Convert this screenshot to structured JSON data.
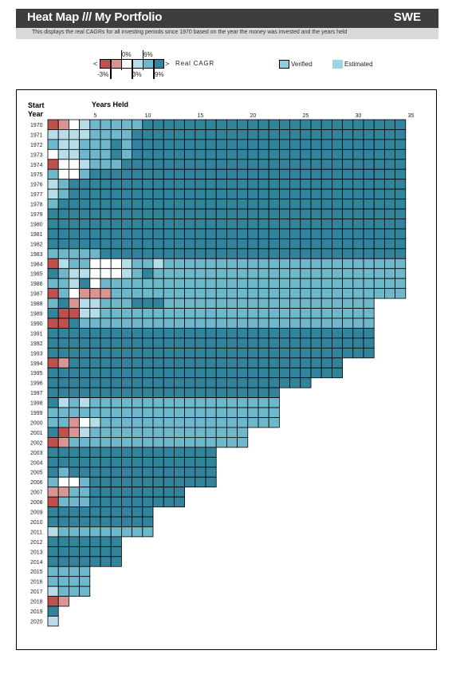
{
  "header": {
    "title": "Heat Map /// My Portfolio",
    "region": "SWE"
  },
  "subtitle": "This displays the real CAGRs for all investing periods since 1970 based on the year the money was invested and the years held",
  "legend": {
    "less_symbol": "<",
    "greater_symbol": ">",
    "metric_label": "Real CAGR",
    "thresholds_top": [
      "0%",
      "6%"
    ],
    "thresholds_bottom": [
      "-3%",
      "3%",
      "9%"
    ],
    "verified_label": "Verified",
    "estimated_label": "Estimated"
  },
  "colors": {
    "lt_neg3": "#c0504d",
    "neg3_0": "#d99594",
    "p0_3": "#ffffff",
    "p3_6": "#b7dde8",
    "p6_9": "#6fb8cb",
    "gt9": "#31849b",
    "verified": "#92cddc",
    "estimated": "#9fd3e6"
  },
  "chart_data": {
    "type": "heatmap",
    "row_header": [
      "Start",
      "Year"
    ],
    "col_header": "Years Held",
    "col_ticks": [
      5,
      10,
      15,
      20,
      25,
      30,
      35
    ],
    "start_years": [
      1970,
      1971,
      1972,
      1973,
      1974,
      1975,
      1976,
      1977,
      1978,
      1979,
      1980,
      1981,
      1982,
      1983,
      1984,
      1985,
      1986,
      1987,
      1988,
      1989,
      1990,
      1991,
      1992,
      1993,
      1994,
      1995,
      1996,
      1997,
      1998,
      1999,
      2000,
      2001,
      2002,
      2003,
      2004,
      2005,
      2006,
      2007,
      2008,
      2009,
      2010,
      2011,
      2012,
      2013,
      2014,
      2015,
      2016,
      2017,
      2018,
      2019,
      2020
    ],
    "max_years_held": 35,
    "categories_legend": [
      "< -3%",
      "-3% to 0%",
      "0% to 3%",
      "3% to 6%",
      "6% to 9%",
      "> 9%"
    ],
    "rows": [
      "0123444445555555555555555555555555",
      "3333444455555555555555555555555555",
      "4334445455555555555555555555555555",
      "2334445455555555555555555555555555",
      "0223444555555555555555555555555555",
      "4224555555555555555555555555555555",
      "3455555555555555555555555555555555",
      "3455555555555555555555555555555555",
      "4555555555555555555555555555555555",
      "5555555555555555555555555555555555",
      "5555555555555555555555555555555555",
      "5555555555555555555555555555555555",
      "5555555555555555555555555555555555",
      "4444455555555555555555555555555555",
      "0344222344344444444444444444444444",
      "5433222345444444444444444444444444",
      "4435244444444444444444444444444444",
      "0421114444444444444444444444444444",
      "4513344455544444444444444444444",
      "5003344444444444444444444444444",
      "0054444444444444444444444444444",
      "5555555555555555555555555555555",
      "5555555555555555555555555555555",
      "5555555555555555555555555555555",
      "0155555555555555555555555555",
      "5555555555555555555555555555",
      "5555555555555555555555555",
      "5555555555555555555555",
      "5343444444444444444444",
      "4444444444444444444444",
      "4412344444444444444444",
      "5013444444444444444",
      "0144444444444444444",
      "5555555555555555",
      "5555555555555555",
      "5455555555555555",
      "4224555555555555",
      "1144555555555",
      "0444555555555",
      "5555555555",
      "5555555555",
      "3444444444",
      "5555555",
      "5555555",
      "5555555",
      "4444",
      "4444",
      "3444",
      "01",
      "5",
      "3"
    ]
  }
}
